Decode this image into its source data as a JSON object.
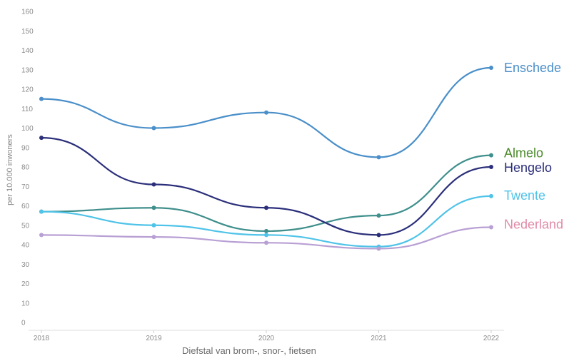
{
  "chart_data": {
    "type": "line",
    "title": "",
    "xlabel": "Diefstal van brom-, snor-, fietsen",
    "ylabel": "per 10.000 inwoners",
    "x": [
      "2018",
      "2019",
      "2020",
      "2021",
      "2022"
    ],
    "ylim": [
      0,
      160
    ],
    "yticks": [
      0,
      10,
      20,
      30,
      40,
      50,
      60,
      70,
      80,
      90,
      100,
      110,
      120,
      130,
      140,
      150,
      160
    ],
    "grid": false,
    "legend": "inline labels at line ends (right)",
    "series": [
      {
        "name": "Enschede",
        "color": "#4a8fc9",
        "values": [
          115,
          100,
          108,
          85,
          131
        ]
      },
      {
        "name": "Almelo",
        "color": "#3f8f8c",
        "label_color": "#4a8a2a",
        "values": [
          57,
          59,
          47,
          55,
          86
        ]
      },
      {
        "name": "Hengelo",
        "color": "#2b2f7a",
        "values": [
          95,
          71,
          59,
          45,
          80
        ]
      },
      {
        "name": "Twente",
        "color": "#4fc3e8",
        "values": [
          57,
          50,
          45,
          39,
          65
        ]
      },
      {
        "name": "Nederland",
        "color": "#b9a0d4",
        "label_color": "#e08aa8",
        "values": [
          45,
          44,
          41,
          38,
          49
        ]
      }
    ]
  }
}
